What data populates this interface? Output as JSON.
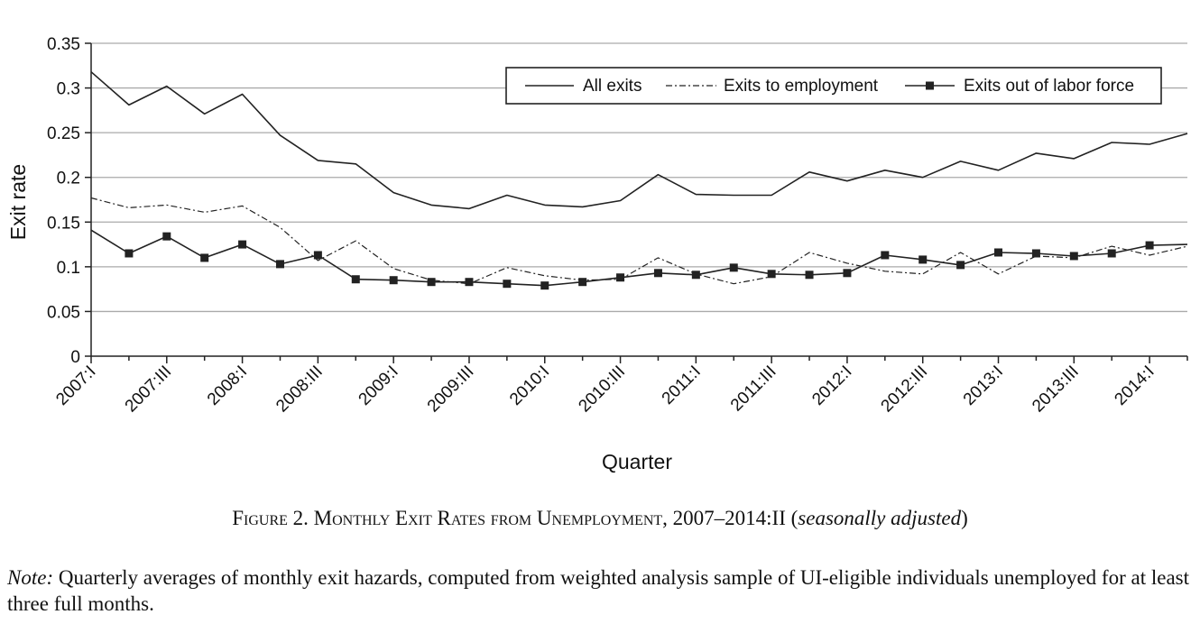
{
  "chart_data": {
    "type": "line",
    "xlabel": "Quarter",
    "ylabel": "Exit rate",
    "ylim": [
      0,
      0.35
    ],
    "yticks": [
      "0",
      "0.05",
      "0.1",
      "0.15",
      "0.2",
      "0.25",
      "0.3",
      "0.35"
    ],
    "xtick_labels": [
      "2007:I",
      "2007:III",
      "2008:I",
      "2008:III",
      "2009:I",
      "2009:III",
      "2010:I",
      "2010:III",
      "2011:I",
      "2011:III",
      "2012:I",
      "2012:III",
      "2013:I",
      "2013:III",
      "2014:I"
    ],
    "x": [
      "2007:I",
      "2007:II",
      "2007:III",
      "2007:IV",
      "2008:I",
      "2008:II",
      "2008:III",
      "2008:IV",
      "2009:I",
      "2009:II",
      "2009:III",
      "2009:IV",
      "2010:I",
      "2010:II",
      "2010:III",
      "2010:IV",
      "2011:I",
      "2011:II",
      "2011:III",
      "2011:IV",
      "2012:I",
      "2012:II",
      "2012:III",
      "2012:IV",
      "2013:I",
      "2013:II",
      "2013:III",
      "2013:IV",
      "2014:I",
      "2014:II"
    ],
    "grid": true,
    "legend_position": "top-right",
    "series": [
      {
        "name": "All exits",
        "style": "solid",
        "values": [
          0.318,
          0.281,
          0.302,
          0.271,
          0.293,
          0.247,
          0.219,
          0.215,
          0.183,
          0.169,
          0.165,
          0.18,
          0.169,
          0.167,
          0.174,
          0.203,
          0.181,
          0.18,
          0.18,
          0.206,
          0.196,
          0.208,
          0.2,
          0.218,
          0.208,
          0.227,
          0.221,
          0.239,
          0.237,
          0.249
        ]
      },
      {
        "name": "Exits to employment",
        "style": "dash-dot",
        "values": [
          0.177,
          0.166,
          0.169,
          0.161,
          0.168,
          0.144,
          0.107,
          0.129,
          0.098,
          0.085,
          0.081,
          0.099,
          0.09,
          0.085,
          0.086,
          0.11,
          0.092,
          0.081,
          0.089,
          0.116,
          0.104,
          0.095,
          0.092,
          0.116,
          0.092,
          0.112,
          0.11,
          0.123,
          0.113,
          0.123
        ]
      },
      {
        "name": "Exits out of labor force",
        "style": "solid-square-markers",
        "values": [
          0.141,
          0.115,
          0.134,
          0.11,
          0.125,
          0.103,
          0.113,
          0.086,
          0.085,
          0.083,
          0.083,
          0.081,
          0.079,
          0.083,
          0.088,
          0.093,
          0.091,
          0.099,
          0.092,
          0.091,
          0.093,
          0.113,
          0.108,
          0.102,
          0.116,
          0.115,
          0.112,
          0.115,
          0.124,
          0.125
        ]
      }
    ],
    "colors": {
      "line": "#222222",
      "grid": "#aaaaaa"
    }
  },
  "caption": {
    "prefix": "Figure 2. Monthly Exit Rates from Unemployment, 2007–2014:II (",
    "italic": "seasonally adjusted",
    "suffix": ")"
  },
  "note": {
    "label": "Note:",
    "text": " Quarterly averages of monthly exit hazards, computed from weighted analysis sample of UI-eligible individuals unemployed for at least three full months."
  }
}
